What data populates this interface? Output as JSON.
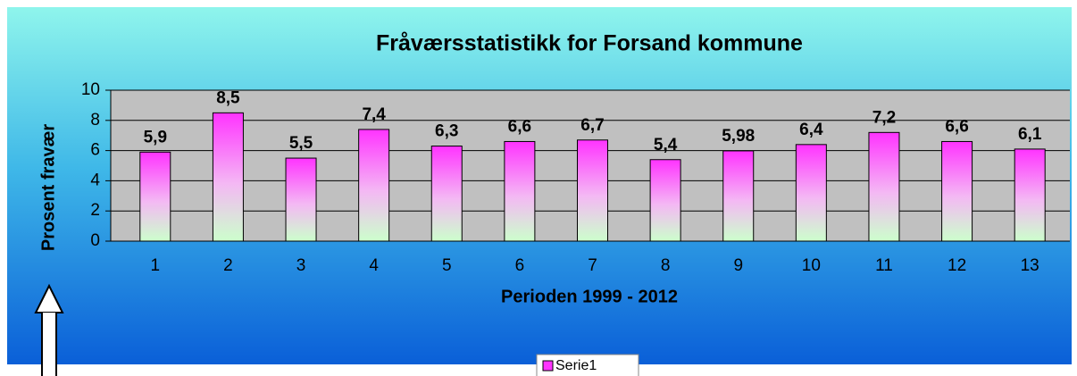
{
  "chart_data": {
    "type": "bar",
    "title": "Fråværsstatistikk for Forsand kommune",
    "x_label": "Perioden 1999 - 2012",
    "y_label": "Prosent fravær",
    "categories": [
      "1",
      "2",
      "3",
      "4",
      "5",
      "6",
      "7",
      "8",
      "9",
      "10",
      "11",
      "12",
      "13"
    ],
    "series": [
      {
        "name": "Serie1",
        "color": "#ff33ff",
        "values": [
          5.9,
          8.5,
          5.5,
          7.4,
          6.3,
          6.6,
          6.7,
          5.4,
          5.98,
          6.4,
          7.2,
          6.6,
          6.1
        ],
        "value_labels": [
          "5,9",
          "8,5",
          "5,5",
          "7,4",
          "6,3",
          "6,6",
          "6,7",
          "5,4",
          "5,98",
          "6,4",
          "7,2",
          "6,6",
          "6,1"
        ]
      }
    ],
    "ylim": [
      0,
      10
    ],
    "yticks": [
      0,
      2,
      4,
      6,
      8,
      10
    ],
    "grid": true,
    "legend": "bottom"
  }
}
